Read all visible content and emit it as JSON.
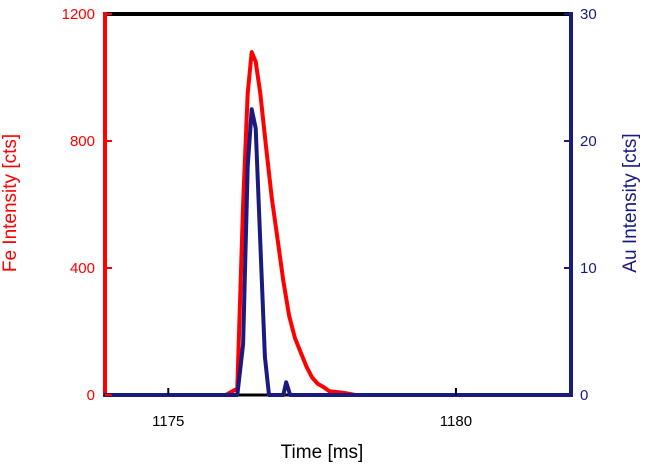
{
  "chart_data": {
    "type": "line",
    "xlabel": "Time [ms]",
    "ylabel_left": "Fe Intensity [cts]",
    "ylabel_right": "Au Intensity [cts]",
    "xlim": [
      1173.9,
      1182.0
    ],
    "ylim_left": [
      0,
      1200
    ],
    "ylim_right": [
      0,
      30
    ],
    "x_ticks": [
      1175,
      1180
    ],
    "y_ticks_left": [
      0,
      400,
      800,
      1200
    ],
    "y_ticks_right": [
      0,
      10,
      20,
      30
    ],
    "grid": false,
    "colors": {
      "fe": "#ff0000",
      "au": "#1a1a80",
      "top_axis": "#000000"
    },
    "series": [
      {
        "name": "Fe",
        "axis": "left",
        "x": [
          1173.9,
          1176.0,
          1176.2,
          1176.3,
          1176.38,
          1176.45,
          1176.52,
          1176.6,
          1176.7,
          1176.8,
          1176.9,
          1177.0,
          1177.1,
          1177.2,
          1177.3,
          1177.4,
          1177.5,
          1177.6,
          1177.7,
          1177.8,
          1178.0,
          1178.1,
          1178.25,
          1182.0
        ],
        "y": [
          0,
          0,
          20,
          600,
          950,
          1080,
          1050,
          950,
          780,
          620,
          490,
          360,
          250,
          180,
          135,
          90,
          55,
          35,
          25,
          12,
          8,
          5,
          0,
          0
        ]
      },
      {
        "name": "Au",
        "axis": "right",
        "x": [
          1173.9,
          1176.2,
          1176.3,
          1176.38,
          1176.45,
          1176.52,
          1176.6,
          1176.68,
          1176.75,
          1176.8,
          1177.0,
          1177.05,
          1177.12,
          1177.2,
          1182.0
        ],
        "y": [
          0,
          0,
          4,
          18,
          22.5,
          21,
          12,
          3,
          0,
          0,
          0,
          1,
          0,
          0,
          0
        ]
      }
    ]
  }
}
